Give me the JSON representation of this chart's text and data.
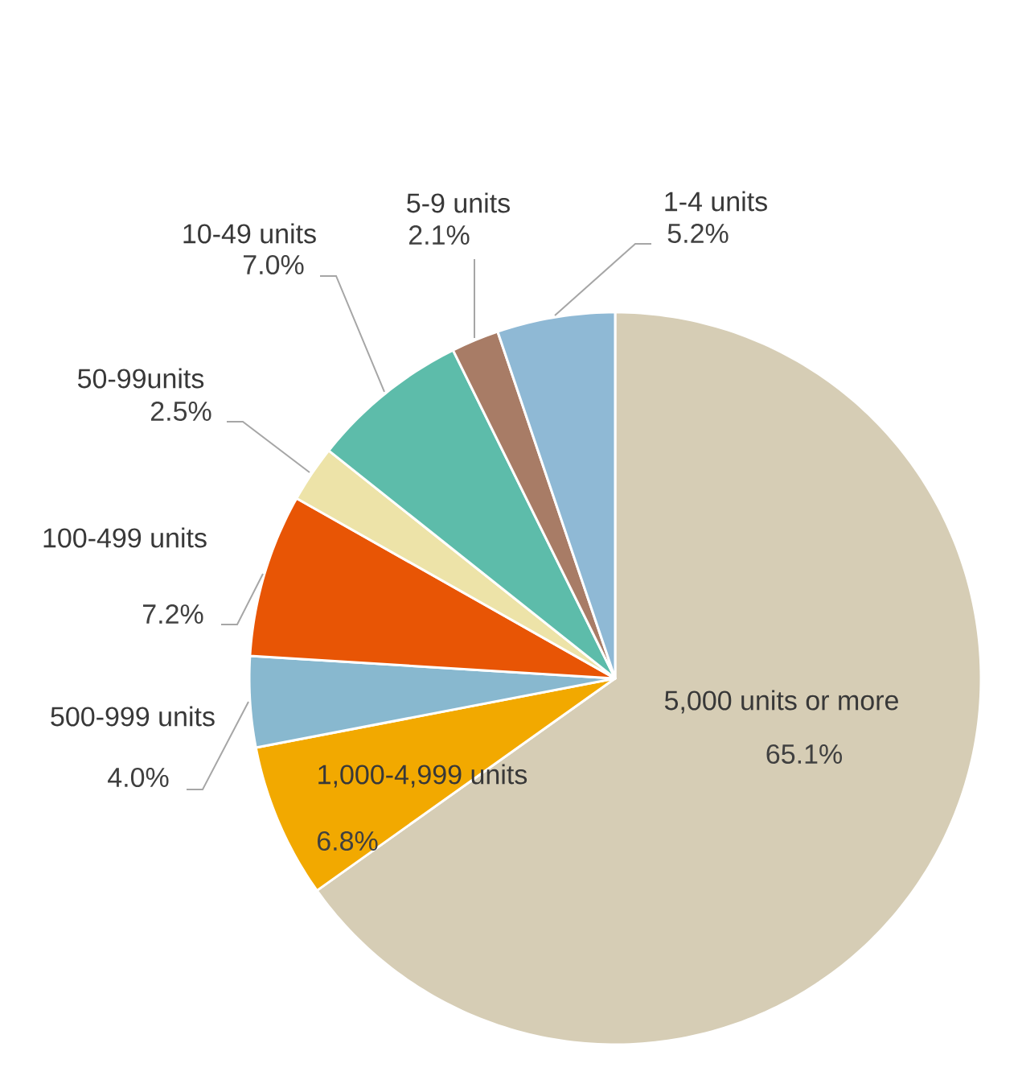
{
  "chart_data": {
    "type": "pie",
    "categories": [
      "5,000 units or more",
      "1,000-4,999 units",
      "500-999 units",
      "100-499 units",
      "50-99units",
      "10-49 units",
      "5-9 units",
      "1-4 units"
    ],
    "values": [
      65.1,
      6.8,
      4.0,
      7.2,
      2.5,
      7.0,
      2.1,
      5.2
    ],
    "value_labels": [
      "65.1%",
      "6.8%",
      "4.0%",
      "7.2%",
      "2.5%",
      "7.0%",
      "2.1%",
      "5.2%"
    ],
    "colors": [
      "#d6cdb5",
      "#f2a900",
      "#88b8cf",
      "#e85505",
      "#ede3a8",
      "#5dbcaa",
      "#a87c66",
      "#8fb9d5"
    ]
  }
}
